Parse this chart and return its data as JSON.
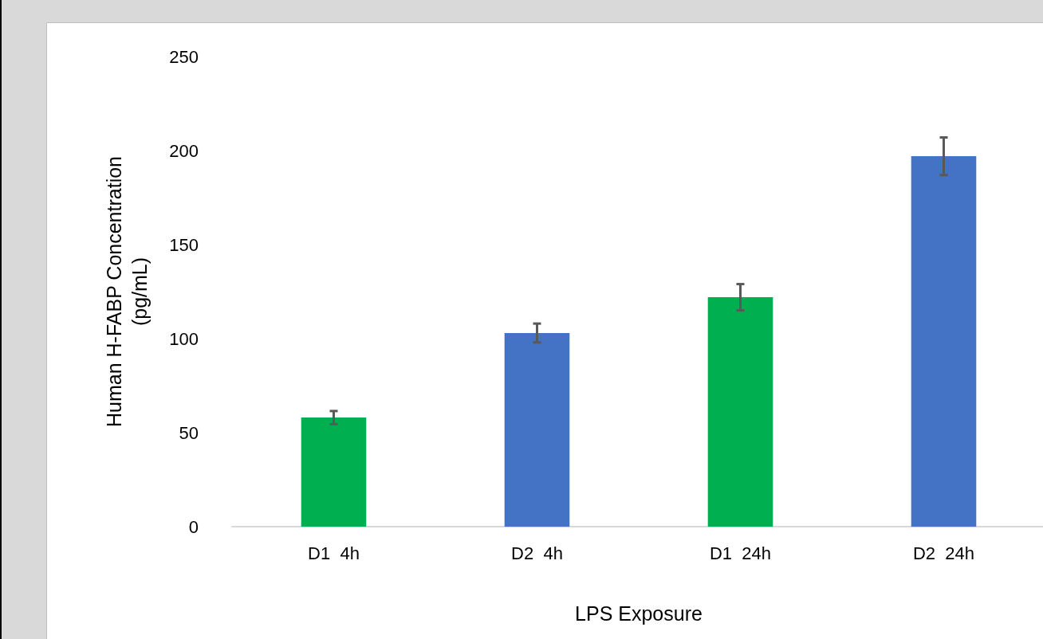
{
  "chart_data": {
    "type": "bar",
    "xlabel": "LPS Exposure",
    "ylabel": "Human H-FABP Concentration\n(pg/mL)",
    "categories": [
      "D1  4h",
      "D2  4h",
      "D1  24h",
      "D2  24h"
    ],
    "values": [
      58,
      103,
      122,
      197
    ],
    "colors": [
      "#00b050",
      "#4472c4",
      "#00b050",
      "#4472c4"
    ],
    "errors": [
      3.5,
      5,
      7,
      10
    ],
    "ylim": [
      0,
      250
    ],
    "yticks": [
      0,
      50,
      100,
      150,
      200,
      250
    ],
    "grid": false
  }
}
